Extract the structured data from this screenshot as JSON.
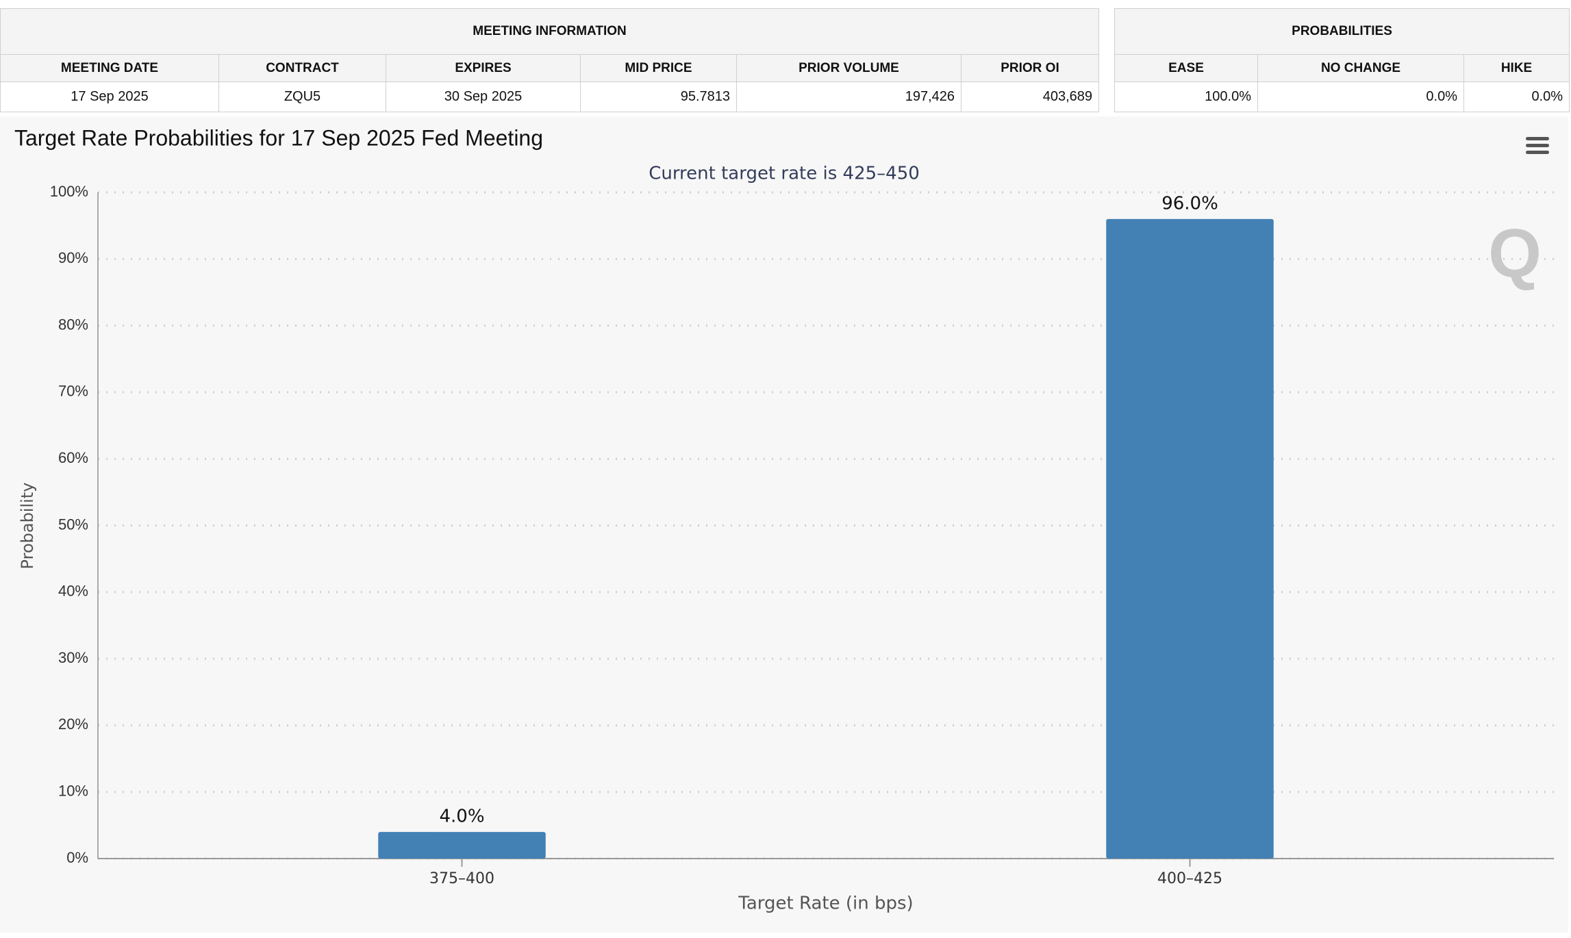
{
  "meeting_info": {
    "title": "MEETING INFORMATION",
    "headers": [
      "MEETING DATE",
      "CONTRACT",
      "EXPIRES",
      "MID PRICE",
      "PRIOR VOLUME",
      "PRIOR OI"
    ],
    "row": [
      "17 Sep 2025",
      "ZQU5",
      "30 Sep 2025",
      "95.7813",
      "197,426",
      "403,689"
    ]
  },
  "probabilities": {
    "title": "PROBABILITIES",
    "headers": [
      "EASE",
      "NO CHANGE",
      "HIKE"
    ],
    "row": [
      "100.0%",
      "0.0%",
      "0.0%"
    ]
  },
  "chart_data": {
    "type": "bar",
    "title": "Target Rate Probabilities for 17 Sep 2025 Fed Meeting",
    "subtitle": "Current target rate is 425–450",
    "x_label": "Target Rate (in bps)",
    "y_label": "Probability",
    "categories": [
      "375–400",
      "400–425"
    ],
    "values": [
      4.0,
      96.0
    ],
    "value_labels": [
      "4.0%",
      "96.0%"
    ],
    "color": "#4380b4",
    "ylim": [
      0,
      100
    ],
    "yticks": [
      {
        "value": 0,
        "label": "0%"
      },
      {
        "value": 10,
        "label": "10%"
      },
      {
        "value": 20,
        "label": "20%"
      },
      {
        "value": 30,
        "label": "30%"
      },
      {
        "value": 40,
        "label": "40%"
      },
      {
        "value": 50,
        "label": "50%"
      },
      {
        "value": 60,
        "label": "60%"
      },
      {
        "value": 70,
        "label": "70%"
      },
      {
        "value": 80,
        "label": "80%"
      },
      {
        "value": 90,
        "label": "90%"
      },
      {
        "value": 100,
        "label": "100%"
      }
    ],
    "grid": true
  }
}
